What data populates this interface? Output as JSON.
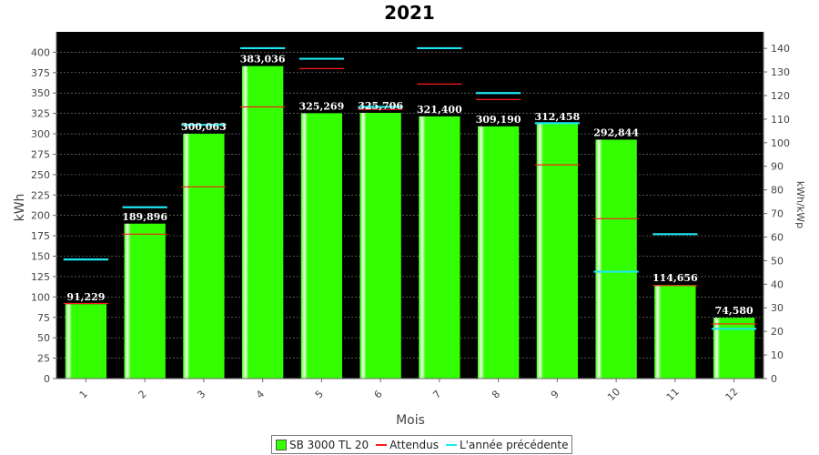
{
  "chart_data": {
    "type": "bar",
    "title": "2021",
    "xlabel": "Mois",
    "ylabel": "kWh",
    "y2label": "kWh/kWp",
    "categories": [
      "1",
      "2",
      "3",
      "4",
      "5",
      "6",
      "7",
      "8",
      "9",
      "10",
      "11",
      "12"
    ],
    "ylim": [
      0,
      425
    ],
    "y2lim": [
      0,
      147
    ],
    "yticks": [
      0,
      25,
      50,
      75,
      100,
      125,
      150,
      175,
      200,
      225,
      250,
      275,
      300,
      325,
      350,
      375,
      400
    ],
    "y2ticks": [
      0,
      10,
      20,
      30,
      40,
      50,
      60,
      70,
      80,
      90,
      100,
      110,
      120,
      130,
      140
    ],
    "series": [
      {
        "name": "SB 3000 TL 20",
        "color": "#33ff00",
        "kind": "bar",
        "values": [
          91.229,
          189.896,
          300.063,
          383.036,
          325.269,
          325.706,
          321.4,
          309.19,
          312.458,
          292.844,
          114.656,
          74.58
        ],
        "labels": [
          "91,229",
          "189,896",
          "300,063",
          "383,036",
          "325,269",
          "325,706",
          "321,400",
          "309,190",
          "312,458",
          "292,844",
          "114,656",
          "74,580"
        ]
      },
      {
        "name": "Attendus",
        "color": "#ff1a1a",
        "kind": "marker",
        "values": [
          92,
          177,
          235,
          333,
          380,
          330,
          361,
          342,
          262,
          196,
          114,
          67
        ]
      },
      {
        "name": "L'année précédente",
        "color": "#1ee6f0",
        "kind": "marker",
        "values": [
          146,
          210,
          311,
          405,
          392,
          333,
          405,
          350,
          313,
          131,
          177,
          61
        ]
      }
    ],
    "grid": true,
    "legend_position": "bottom",
    "plot_background": "#000000"
  }
}
